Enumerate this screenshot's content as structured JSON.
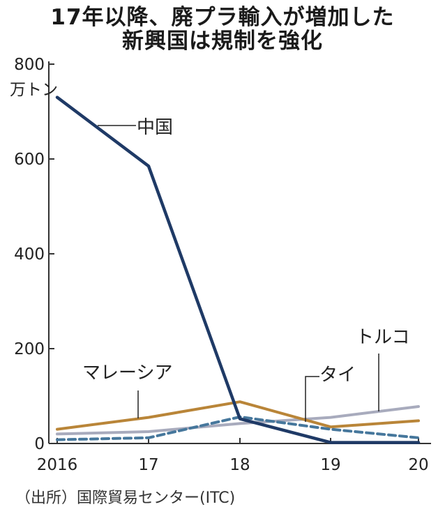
{
  "title_lines": [
    "17年以降、廃プラ輸入が増加した",
    "新興国は規制を強化"
  ],
  "source": "（出所）国際貿易センター(ITC)",
  "chart_data": {
    "type": "line",
    "title": "17年以降、廃プラ輸入が増加した新興国は規制を強化",
    "ylabel": "万トン",
    "ylim": [
      0,
      800
    ],
    "yticks": [
      0,
      200,
      400,
      600,
      800
    ],
    "x": [
      "2016",
      "17",
      "18",
      "19",
      "20"
    ],
    "series": [
      {
        "name": "中国",
        "values": [
          730,
          585,
          52,
          2,
          2
        ],
        "color": "#1f3a66",
        "dash": false
      },
      {
        "name": "マレーシア",
        "values": [
          30,
          55,
          88,
          35,
          48
        ],
        "color": "#b98538",
        "dash": false
      },
      {
        "name": "トルコ",
        "values": [
          20,
          25,
          42,
          55,
          78
        ],
        "color": "#a8abbd",
        "dash": false
      },
      {
        "name": "タイ",
        "values": [
          8,
          12,
          56,
          30,
          12
        ],
        "color": "#46779c",
        "dash": true
      }
    ],
    "grid": false,
    "legend": "inline labels"
  }
}
